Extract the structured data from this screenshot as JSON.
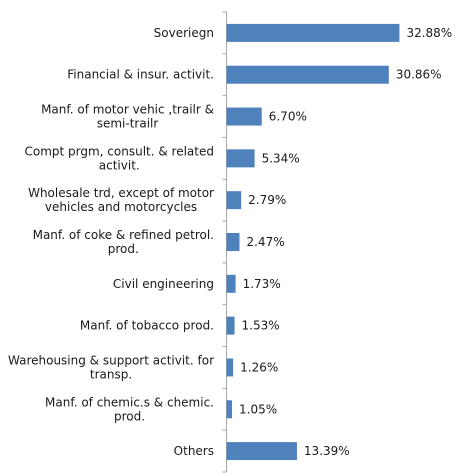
{
  "chart_data": {
    "type": "bar",
    "orientation": "horizontal",
    "categories": [
      [
        "Soveriegn"
      ],
      [
        "Financial & insur. activit."
      ],
      [
        "Manf. of motor vehic ,trailr &",
        "semi-trailr"
      ],
      [
        "Compt prgm, consult. & related",
        "activit."
      ],
      [
        "Wholesale trd, except of motor",
        "vehicles and motorcycles"
      ],
      [
        "Manf. of coke & refined petrol.",
        "prod."
      ],
      [
        "Civil engineering"
      ],
      [
        "Manf. of tobacco prod."
      ],
      [
        "Warehousing & support activit. for",
        "transp."
      ],
      [
        "Manf. of chemic.s & chemic.",
        "prod."
      ],
      [
        "Others"
      ]
    ],
    "values": [
      32.88,
      30.86,
      6.7,
      5.34,
      2.79,
      2.47,
      1.73,
      1.53,
      1.26,
      1.05,
      13.39
    ],
    "value_labels": [
      "32.88%",
      "30.86%",
      "6.70%",
      "5.34%",
      "2.79%",
      "2.47%",
      "1.73%",
      "1.53%",
      "1.26%",
      "1.05%",
      "13.39%"
    ],
    "bar_color": "#4f81bd",
    "axis_color": "#a6a6a6",
    "grid": false
  }
}
